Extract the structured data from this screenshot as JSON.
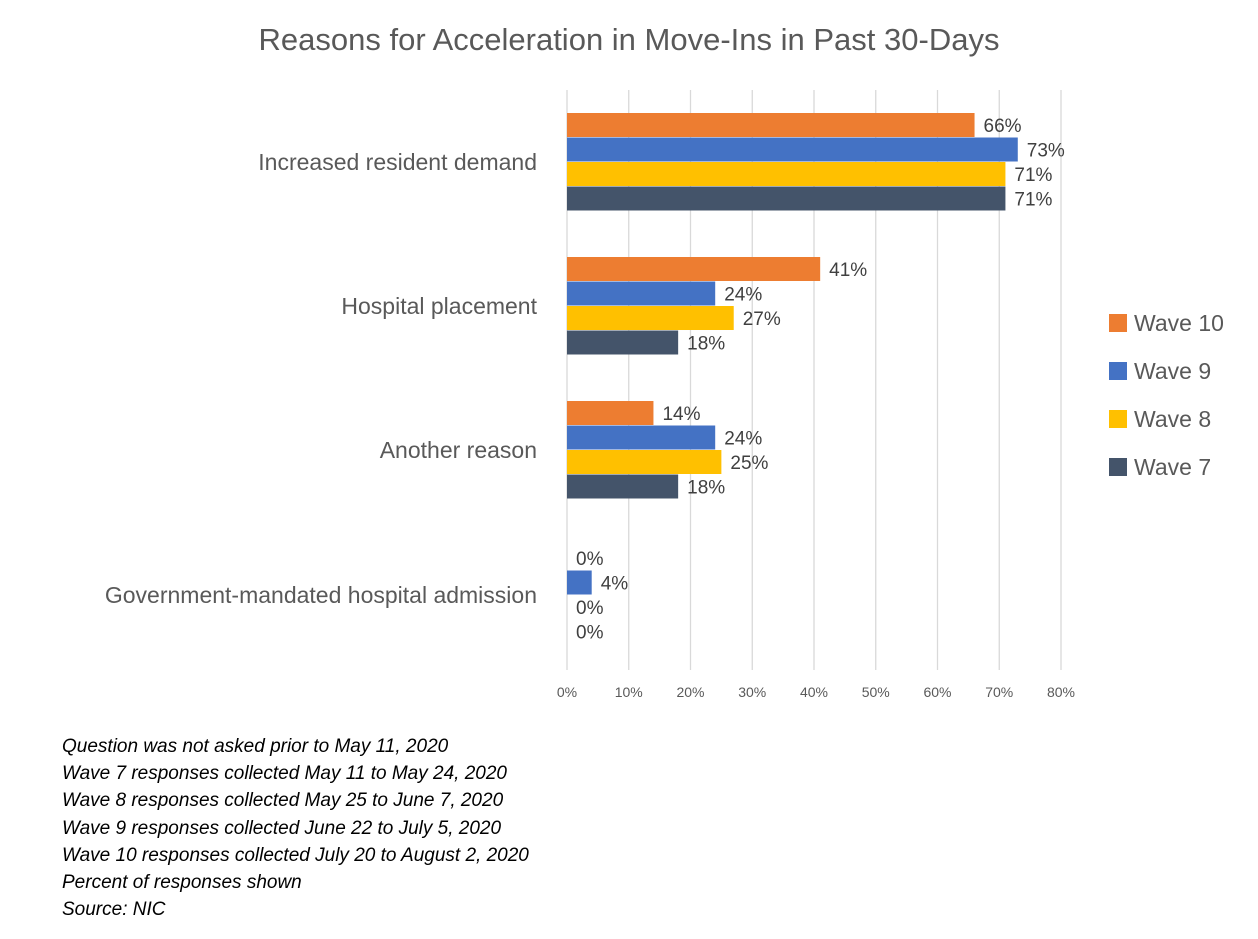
{
  "chart_data": {
    "type": "bar",
    "orientation": "horizontal",
    "title": "Reasons for Acceleration in Move-Ins in Past 30-Days",
    "categories": [
      "Increased resident demand",
      "Hospital placement",
      "Another reason",
      "Government-mandated hospital admission"
    ],
    "series": [
      {
        "name": "Wave 10",
        "color": "#ED7D31",
        "values": [
          66,
          41,
          14,
          0
        ]
      },
      {
        "name": "Wave 9",
        "color": "#4472C4",
        "values": [
          73,
          24,
          24,
          4
        ]
      },
      {
        "name": "Wave 8",
        "color": "#FFC000",
        "values": [
          71,
          27,
          25,
          0
        ]
      },
      {
        "name": "Wave 7",
        "color": "#44546A",
        "values": [
          71,
          18,
          18,
          0
        ]
      }
    ],
    "xlim": [
      0,
      80
    ],
    "xticks": [
      "0%",
      "10%",
      "20%",
      "30%",
      "40%",
      "50%",
      "60%",
      "70%",
      "80%"
    ],
    "value_suffix": "%",
    "grid": "vertical",
    "legend": "right"
  },
  "notes": [
    "Question was not asked prior to May 11, 2020",
    "Wave 7 responses collected May 11 to May 24, 2020",
    "Wave 8 responses collected May 25 to June 7, 2020",
    "Wave 9 responses collected June 22 to July 5, 2020",
    "Wave 10 responses collected July 20 to August 2, 2020",
    "Percent of responses shown",
    "Source: NIC"
  ]
}
